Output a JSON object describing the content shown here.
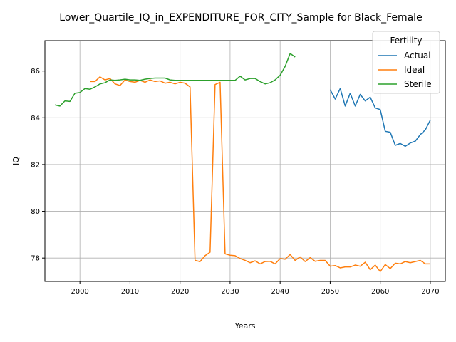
{
  "chart_data": {
    "type": "line",
    "title": "Lower_Quartile_IQ_in_EXPENDITURE_FOR_CITY_Sample for Black_Female",
    "xlabel": "Years",
    "ylabel": "IQ",
    "xlim": [
      1993,
      2073
    ],
    "ylim": [
      77.0,
      87.3
    ],
    "xticks": [
      2000,
      2010,
      2020,
      2030,
      2040,
      2050,
      2060,
      2070
    ],
    "yticks": [
      78,
      80,
      82,
      84,
      86
    ],
    "grid": true,
    "legend": {
      "title": "Fertility",
      "placement": "top-right"
    },
    "series": [
      {
        "name": "Actual",
        "color": "#1f77b4",
        "x": [
          2050,
          2051,
          2052,
          2053,
          2054,
          2055,
          2056,
          2057,
          2058,
          2059,
          2060,
          2061,
          2062,
          2063,
          2064,
          2065,
          2066,
          2067,
          2068,
          2069,
          2070
        ],
        "y": [
          85.2,
          84.8,
          85.25,
          84.5,
          85.05,
          84.5,
          85.0,
          84.72,
          84.88,
          84.42,
          84.35,
          83.42,
          83.38,
          82.82,
          82.9,
          82.78,
          82.92,
          83.0,
          83.28,
          83.48,
          83.9
        ]
      },
      {
        "name": "Ideal",
        "color": "#ff7f0e",
        "x": [
          2002,
          2003,
          2004,
          2005,
          2006,
          2007,
          2008,
          2009,
          2010,
          2011,
          2012,
          2013,
          2014,
          2015,
          2016,
          2017,
          2018,
          2019,
          2020,
          2021,
          2022,
          2023,
          2024,
          2025,
          2026,
          2027,
          2028,
          2029,
          2030,
          2031,
          2032,
          2033,
          2034,
          2035,
          2036,
          2037,
          2038,
          2039,
          2040,
          2041,
          2042,
          2043,
          2044,
          2045,
          2046,
          2047,
          2048,
          2049,
          2050,
          2051,
          2052,
          2053,
          2054,
          2055,
          2056,
          2057,
          2058,
          2059,
          2060,
          2061,
          2062,
          2063,
          2064,
          2065,
          2066,
          2067,
          2068,
          2069,
          2070
        ],
        "y": [
          85.55,
          85.55,
          85.75,
          85.62,
          85.68,
          85.45,
          85.38,
          85.62,
          85.55,
          85.52,
          85.6,
          85.52,
          85.62,
          85.55,
          85.58,
          85.48,
          85.52,
          85.45,
          85.52,
          85.48,
          85.32,
          77.9,
          77.85,
          78.1,
          78.25,
          85.42,
          85.52,
          78.18,
          78.12,
          78.1,
          77.98,
          77.9,
          77.8,
          77.88,
          77.75,
          77.85,
          77.86,
          77.75,
          77.98,
          77.95,
          78.15,
          77.9,
          78.05,
          77.85,
          78.02,
          77.86,
          77.9,
          77.9,
          77.65,
          77.68,
          77.58,
          77.62,
          77.62,
          77.7,
          77.65,
          77.82,
          77.5,
          77.7,
          77.42,
          77.72,
          77.55,
          77.78,
          77.75,
          77.85,
          77.8,
          77.85,
          77.9,
          77.75,
          77.75
        ]
      },
      {
        "name": "Sterile",
        "color": "#2ca02c",
        "x": [
          1995,
          1996,
          1997,
          1998,
          1999,
          2000,
          2001,
          2002,
          2003,
          2004,
          2005,
          2006,
          2007,
          2008,
          2009,
          2010,
          2011,
          2012,
          2013,
          2014,
          2015,
          2016,
          2017,
          2018,
          2019,
          2020,
          2021,
          2022,
          2023,
          2024,
          2025,
          2026,
          2027,
          2028,
          2029,
          2030,
          2031,
          2032,
          2033,
          2034,
          2035,
          2036,
          2037,
          2038,
          2039,
          2040,
          2041,
          2042,
          2043
        ],
        "y": [
          84.55,
          84.5,
          84.72,
          84.7,
          85.05,
          85.08,
          85.25,
          85.22,
          85.32,
          85.45,
          85.5,
          85.62,
          85.6,
          85.62,
          85.65,
          85.62,
          85.62,
          85.6,
          85.65,
          85.68,
          85.7,
          85.7,
          85.7,
          85.62,
          85.6,
          85.6,
          85.6,
          85.6,
          85.6,
          85.6,
          85.6,
          85.6,
          85.6,
          85.6,
          85.6,
          85.6,
          85.6,
          85.78,
          85.62,
          85.68,
          85.68,
          85.55,
          85.45,
          85.5,
          85.62,
          85.82,
          86.2,
          86.75,
          86.6
        ]
      }
    ]
  }
}
